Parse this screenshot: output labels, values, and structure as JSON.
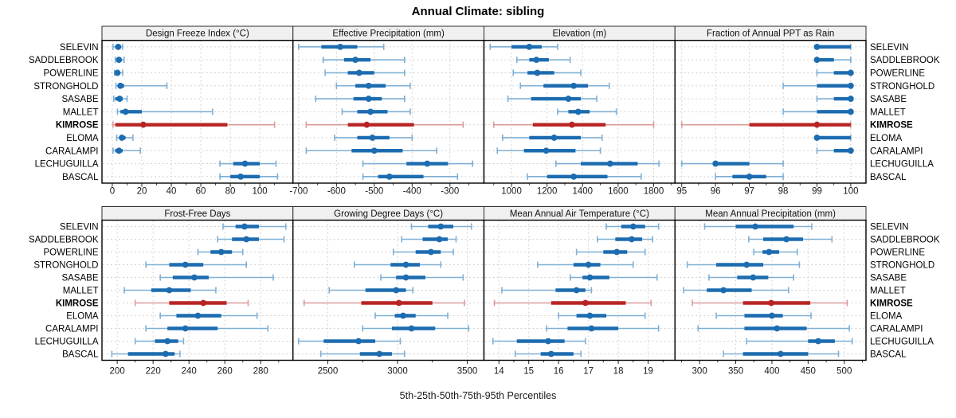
{
  "title": "Annual Climate: sibling",
  "caption": "5th-25th-50th-75th-95th Percentiles",
  "colors": {
    "series_blue": "#1c6cb0",
    "series_blue_light": "#7fafd4",
    "highlight_red": "#b82423",
    "highlight_red_light": "#db9b9a",
    "grid": "#d2d2d2",
    "strip_bg": "#f0f0f0",
    "border": "#000000",
    "tick": "#222222"
  },
  "chart_data": {
    "type": "interval",
    "percentiles": [
      5,
      25,
      50,
      75,
      95
    ],
    "sites": [
      "SELEVIN",
      "SADDLEBROOK",
      "POWERLINE",
      "STRONGHOLD",
      "SASABE",
      "MALLET",
      "KIMROSE",
      "ELOMA",
      "CARALAMPI",
      "LECHUGUILLA",
      "BASCAL"
    ],
    "highlight_site": "KIMROSE",
    "panels": [
      {
        "title": "Design Freeze Index (°C)",
        "row": 0,
        "col": 0,
        "xlim": [
          -7,
          122.5
        ],
        "ticks": [
          0,
          20,
          40,
          60,
          80,
          100
        ],
        "values": {
          "SELEVIN": [
            0.5,
            2,
            4,
            5.5,
            7
          ],
          "SADDLEBROOK": [
            2,
            3,
            4.5,
            6,
            8
          ],
          "POWERLINE": [
            1.5,
            2.5,
            3.5,
            5,
            7
          ],
          "STRONGHOLD": [
            2.5,
            4,
            5.5,
            8,
            37
          ],
          "SASABE": [
            1,
            2,
            5,
            7,
            10
          ],
          "MALLET": [
            3.5,
            5.5,
            9,
            20,
            68
          ],
          "KIMROSE": [
            0.5,
            2,
            21,
            78,
            110
          ],
          "ELOMA": [
            3,
            5,
            6.5,
            9,
            14
          ],
          "CARALAMPI": [
            0.5,
            2,
            4.5,
            7,
            19
          ],
          "LECHUGUILLA": [
            73,
            82,
            90,
            100,
            111
          ],
          "BASCAL": [
            73,
            80,
            87,
            100,
            112
          ]
        }
      },
      {
        "title": "Effective Precipitation (mm)",
        "row": 0,
        "col": 1,
        "xlim": [
          -715,
          -210
        ],
        "ticks": [
          -700,
          -600,
          -500,
          -400,
          -300
        ],
        "values": {
          "SELEVIN": [
            -700,
            -640,
            -590,
            -545,
            -475
          ],
          "SADDLEBROOK": [
            -635,
            -580,
            -550,
            -510,
            -420
          ],
          "POWERLINE": [
            -630,
            -570,
            -540,
            -500,
            -420
          ],
          "STRONGHOLD": [
            -600,
            -550,
            -515,
            -470,
            -405
          ],
          "SASABE": [
            -655,
            -555,
            -515,
            -480,
            -420
          ],
          "MALLET": [
            -585,
            -545,
            -510,
            -465,
            -405
          ],
          "KIMROSE": [
            -680,
            -570,
            -520,
            -395,
            -265
          ],
          "ELOMA": [
            -605,
            -545,
            -505,
            -460,
            -400
          ],
          "CARALAMPI": [
            -680,
            -560,
            -500,
            -425,
            -335
          ],
          "LECHUGUILLA": [
            -530,
            -415,
            -360,
            -305,
            -240
          ],
          "BASCAL": [
            -530,
            -490,
            -460,
            -370,
            -280
          ]
        }
      },
      {
        "title": "Elevation (m)",
        "row": 0,
        "col": 2,
        "xlim": [
          845,
          1920
        ],
        "ticks": [
          1000,
          1200,
          1400,
          1600,
          1800
        ],
        "values": {
          "SELEVIN": [
            880,
            1000,
            1100,
            1170,
            1260
          ],
          "SADDLEBROOK": [
            1030,
            1100,
            1140,
            1210,
            1330
          ],
          "POWERLINE": [
            1010,
            1090,
            1145,
            1240,
            1390
          ],
          "STRONGHOLD": [
            1050,
            1180,
            1350,
            1430,
            1550
          ],
          "SASABE": [
            980,
            1110,
            1320,
            1390,
            1480
          ],
          "MALLET": [
            1260,
            1320,
            1375,
            1440,
            1590
          ],
          "KIMROSE": [
            900,
            1120,
            1340,
            1530,
            1800
          ],
          "ELOMA": [
            950,
            1100,
            1240,
            1390,
            1510
          ],
          "CARALAMPI": [
            920,
            1070,
            1195,
            1360,
            1500
          ],
          "LECHUGUILLA": [
            1250,
            1390,
            1555,
            1710,
            1830
          ],
          "BASCAL": [
            1090,
            1200,
            1350,
            1540,
            1730
          ]
        }
      },
      {
        "title": "Fraction of Annual PPT as Rain",
        "row": 0,
        "col": 3,
        "xlim": [
          94.8,
          100.45
        ],
        "ticks": [
          95,
          96,
          97,
          98,
          99,
          100
        ],
        "values": {
          "SELEVIN": [
            99,
            99,
            99,
            100,
            100
          ],
          "SADDLEBROOK": [
            99,
            99,
            99,
            99.5,
            100
          ],
          "POWERLINE": [
            99,
            99.5,
            100,
            100,
            100
          ],
          "STRONGHOLD": [
            98,
            99,
            100,
            100,
            100
          ],
          "SASABE": [
            99,
            99.5,
            100,
            100,
            100
          ],
          "MALLET": [
            98,
            99,
            100,
            100,
            100
          ],
          "KIMROSE": [
            95,
            97,
            99,
            100,
            100
          ],
          "ELOMA": [
            99,
            99,
            99,
            100,
            100
          ],
          "CARALAMPI": [
            99,
            99.5,
            100,
            100,
            100
          ],
          "LECHUGUILLA": [
            95,
            96,
            96,
            97,
            98
          ],
          "BASCAL": [
            96,
            96.5,
            97,
            97.5,
            98
          ]
        }
      },
      {
        "title": "Frost-Free Days",
        "row": 1,
        "col": 0,
        "xlim": [
          191.5,
          298
        ],
        "ticks": [
          200,
          220,
          240,
          260,
          280
        ],
        "values": {
          "SELEVIN": [
            259,
            266,
            271,
            279,
            294
          ],
          "SADDLEBROOK": [
            256,
            264,
            272,
            279,
            293
          ],
          "POWERLINE": [
            245,
            252,
            258,
            264,
            270
          ],
          "STRONGHOLD": [
            216,
            229,
            238,
            248,
            272
          ],
          "SASABE": [
            224,
            231,
            243,
            251,
            287
          ],
          "MALLET": [
            204,
            219,
            229,
            241,
            255
          ],
          "KIMROSE": [
            210,
            229,
            248,
            261,
            273
          ],
          "ELOMA": [
            224,
            233,
            245,
            258,
            278
          ],
          "CARALAMPI": [
            216,
            228,
            238,
            256,
            284
          ],
          "LECHUGUILLA": [
            210,
            221,
            228,
            234,
            237
          ],
          "BASCAL": [
            197,
            206,
            227,
            232,
            235
          ]
        }
      },
      {
        "title": "Growing Degree Days (°C)",
        "row": 1,
        "col": 1,
        "xlim": [
          2250,
          3620
        ],
        "ticks": [
          2500,
          3000,
          3500
        ],
        "values": {
          "SELEVIN": [
            3100,
            3220,
            3310,
            3400,
            3530
          ],
          "SADDLEBROOK": [
            3030,
            3180,
            3300,
            3360,
            3420
          ],
          "POWERLINE": [
            2970,
            3130,
            3240,
            3310,
            3400
          ],
          "STRONGHOLD": [
            2690,
            2950,
            3060,
            3160,
            3310
          ],
          "SASABE": [
            2880,
            2990,
            3060,
            3200,
            3470
          ],
          "MALLET": [
            2510,
            2770,
            2990,
            3060,
            3110
          ],
          "KIMROSE": [
            2330,
            2740,
            3010,
            3250,
            3480
          ],
          "ELOMA": [
            2840,
            2980,
            3040,
            3130,
            3360
          ],
          "CARALAMPI": [
            2750,
            2960,
            3100,
            3270,
            3510
          ],
          "LECHUGUILLA": [
            2290,
            2470,
            2720,
            2840,
            3020
          ],
          "BASCAL": [
            2450,
            2730,
            2870,
            2960,
            3050
          ]
        }
      },
      {
        "title": "Mean Annual Air Temperature (°C)",
        "row": 1,
        "col": 2,
        "xlim": [
          13.5,
          19.9
        ],
        "ticks": [
          14,
          15,
          16,
          17,
          18,
          19
        ],
        "values": {
          "SELEVIN": [
            17.6,
            18.1,
            18.5,
            18.9,
            19.35
          ],
          "SADDLEBROOK": [
            17.3,
            17.9,
            18.45,
            18.8,
            19.15
          ],
          "POWERLINE": [
            16.6,
            17.5,
            17.95,
            18.3,
            18.9
          ],
          "STRONGHOLD": [
            15.3,
            16.5,
            17.0,
            17.4,
            18.5
          ],
          "SASABE": [
            16.4,
            16.8,
            17.05,
            17.7,
            19.3
          ],
          "MALLET": [
            14.1,
            15.9,
            16.6,
            16.9,
            17.1
          ],
          "KIMROSE": [
            13.85,
            15.75,
            16.9,
            18.25,
            19.1
          ],
          "ELOMA": [
            16.0,
            16.6,
            17.05,
            17.6,
            18.9
          ],
          "CARALAMPI": [
            15.6,
            16.3,
            17.1,
            18.0,
            19.35
          ],
          "LECHUGUILLA": [
            13.8,
            14.6,
            15.65,
            16.2,
            16.9
          ],
          "BASCAL": [
            14.55,
            15.4,
            15.75,
            16.5,
            16.75
          ]
        }
      },
      {
        "title": "Mean Annual Precipitation (mm)",
        "row": 1,
        "col": 3,
        "xlim": [
          266,
          530
        ],
        "ticks": [
          300,
          350,
          400,
          450,
          500
        ],
        "values": {
          "SELEVIN": [
            307,
            350,
            377,
            430,
            455
          ],
          "SADDLEBROOK": [
            368,
            388,
            420,
            443,
            483
          ],
          "POWERLINE": [
            375,
            387,
            396,
            410,
            435
          ],
          "STRONGHOLD": [
            283,
            323,
            365,
            388,
            438
          ],
          "SASABE": [
            313,
            352,
            374,
            395,
            430
          ],
          "MALLET": [
            278,
            310,
            333,
            372,
            423
          ],
          "KIMROSE": [
            290,
            360,
            399,
            453,
            504
          ],
          "ELOMA": [
            323,
            362,
            400,
            415,
            454
          ],
          "CARALAMPI": [
            298,
            362,
            407,
            448,
            507
          ],
          "LECHUGUILLA": [
            365,
            450,
            464,
            487,
            511
          ],
          "BASCAL": [
            333,
            360,
            412,
            450,
            492
          ]
        }
      }
    ]
  }
}
